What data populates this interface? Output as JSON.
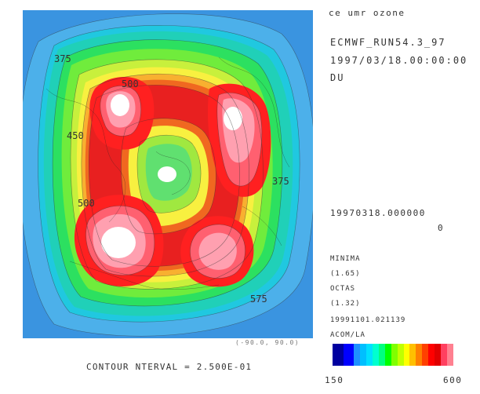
{
  "header": {
    "title": "ce umr ozone",
    "run": "ECMWF_RUN54.3_97",
    "datetime": "1997/03/18.00:00:00",
    "unit": "DU"
  },
  "info": {
    "date_stamp": "19970318.000000",
    "level": "0",
    "min_label": "MINIMA",
    "min_value": "(1.65)",
    "max_label": "OCTAS",
    "max_value": "(1.32)",
    "timestamp": "19991101.021139",
    "source": "ACOM/LA"
  },
  "map": {
    "contour_labels": [
      "500",
      "500",
      "375",
      "375",
      "575",
      "450"
    ],
    "corner_coords": "(-90.0, 90.0)"
  },
  "footer": {
    "contour_interval": "CONTOUR  NTERVAL = 2.500E-01"
  },
  "colorbar": {
    "min": "150",
    "max": "600",
    "colors": [
      "#0000a0",
      "#0000ff",
      "#1e90ff",
      "#00bfff",
      "#00e0ff",
      "#00ffd0",
      "#00ff80",
      "#00ff00",
      "#80ff00",
      "#c0ff00",
      "#ffff00",
      "#ffc000",
      "#ff8000",
      "#ff4000",
      "#ff0000",
      "#e00000",
      "#ff4060",
      "#ff8090"
    ]
  }
}
